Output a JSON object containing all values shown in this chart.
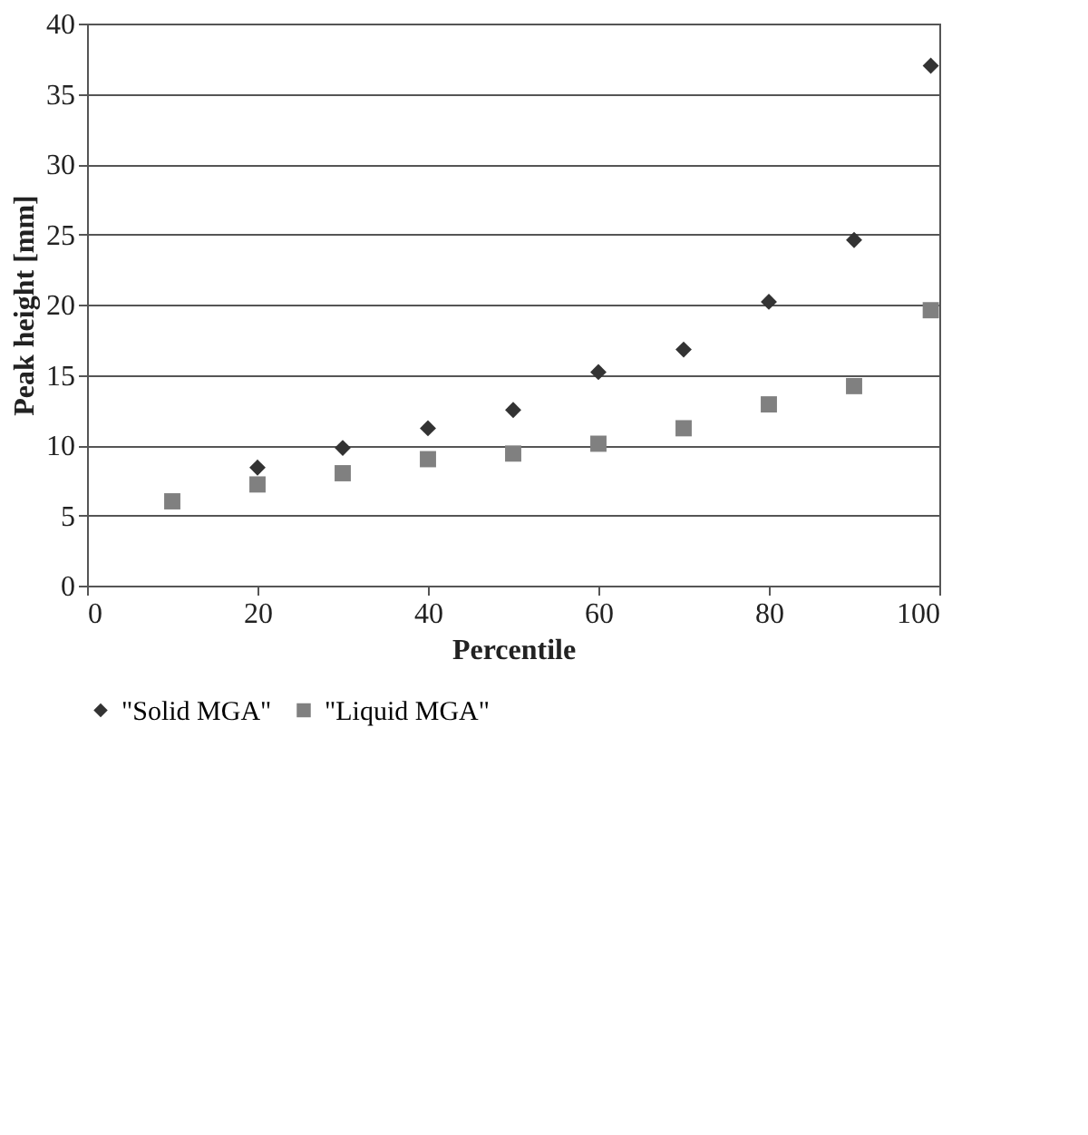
{
  "chart_data": {
    "type": "scatter",
    "xlabel": "Percentile",
    "ylabel": "Peak height [mm]",
    "x": [
      10,
      20,
      30,
      40,
      50,
      60,
      70,
      80,
      90,
      99
    ],
    "series": [
      {
        "name": "\"Solid MGA\"",
        "color": "#333333",
        "marker": "diamond",
        "values": [
          null,
          8.4,
          9.8,
          11.2,
          12.5,
          15.2,
          16.8,
          20.2,
          24.6,
          37.0
        ]
      },
      {
        "name": "\"Liquid MGA\"",
        "color": "#808080",
        "marker": "square",
        "values": [
          6.0,
          7.2,
          8.0,
          9.0,
          9.4,
          10.1,
          11.2,
          12.9,
          14.2,
          19.6
        ]
      }
    ],
    "xlim": [
      0,
      100
    ],
    "xticks": [
      0,
      20,
      40,
      60,
      80,
      100
    ],
    "ylim": [
      0,
      40
    ],
    "yticks": [
      0,
      5,
      10,
      15,
      20,
      25,
      30,
      35,
      40
    ],
    "grid": "y",
    "legend": "bottom"
  }
}
